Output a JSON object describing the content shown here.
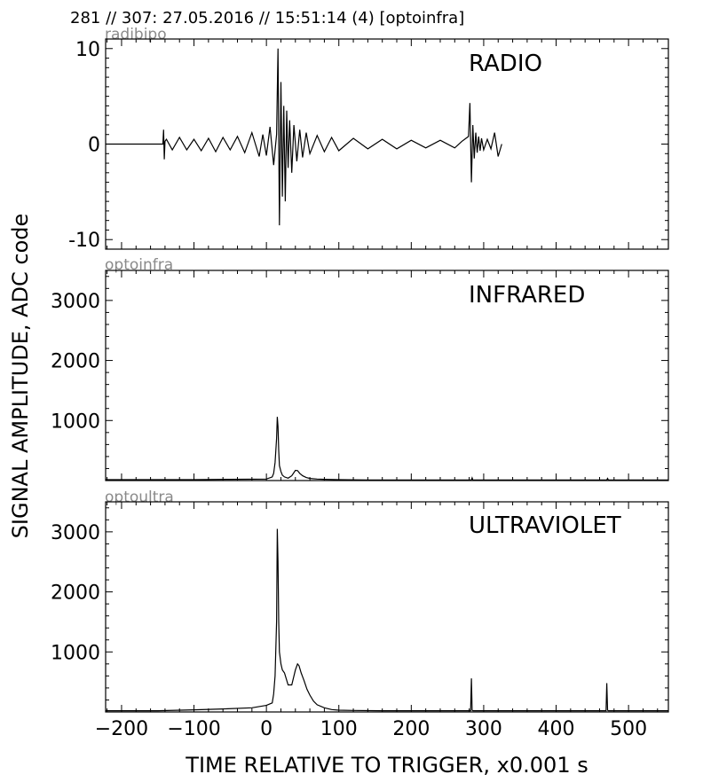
{
  "header": "281 // 307:   27.05.2016 // 15:51:14 (4)  [optoinfra]",
  "xlabel": "TIME RELATIVE TO TRIGGER,   x0.001 s",
  "ylabel": "SIGNAL AMPLITUDE,  ADC code",
  "chart_data": [
    {
      "type": "line",
      "title": "RADIO",
      "source": "radibipo",
      "xlim": [
        -222,
        555
      ],
      "ylim": [
        -11,
        11
      ],
      "yticks": [
        10,
        0,
        -10
      ],
      "series": [
        {
          "x": [
            -222,
            -143,
            -142,
            -141,
            -140,
            -138,
            -130,
            -120,
            -110,
            -100,
            -90,
            -80,
            -70,
            -60,
            -50,
            -40,
            -30,
            -20,
            -10,
            -5,
            0,
            5,
            10,
            14,
            16,
            18,
            20,
            22,
            24,
            26,
            28,
            30,
            32,
            35,
            38,
            42,
            46,
            50,
            55,
            60,
            70,
            80,
            90,
            100,
            120,
            140,
            160,
            180,
            200,
            220,
            240,
            260,
            270,
            279,
            281,
            283,
            285,
            287,
            289,
            291,
            293,
            295,
            297,
            300,
            305,
            310,
            315,
            320,
            325
          ],
          "y": [
            0,
            0,
            1.5,
            -1.6,
            0.3,
            0.5,
            -0.6,
            0.7,
            -0.6,
            0.5,
            -0.7,
            0.6,
            -0.8,
            0.7,
            -0.6,
            0.8,
            -0.9,
            1.2,
            -1.3,
            1.0,
            -1.2,
            1.8,
            -2.2,
            1.0,
            10.0,
            -8.5,
            6.5,
            -5.5,
            4.0,
            -6.0,
            3.5,
            -2.5,
            2.5,
            -3.0,
            2.0,
            -1.8,
            1.5,
            -1.4,
            1.2,
            -1.0,
            0.9,
            -0.8,
            0.7,
            -0.7,
            0.6,
            -0.5,
            0.5,
            -0.5,
            0.4,
            -0.4,
            0.4,
            -0.4,
            0.3,
            0.8,
            4.3,
            -4.0,
            2.0,
            -1.5,
            1.2,
            -0.9,
            0.8,
            -0.7,
            0.6,
            -0.6,
            0.5,
            -0.5,
            1.2,
            -1.3,
            0
          ]
        }
      ]
    },
    {
      "type": "line",
      "title": "INFRARED",
      "source": "optoinfra",
      "xlim": [
        -222,
        555
      ],
      "ylim": [
        0,
        3500
      ],
      "yticks": [
        3000,
        2000,
        1000
      ],
      "series": [
        {
          "x": [
            -222,
            -100,
            -50,
            0,
            8,
            10,
            12,
            14,
            15,
            16,
            17,
            18,
            20,
            22,
            25,
            30,
            35,
            40,
            43,
            46,
            50,
            55,
            60,
            70,
            80,
            100,
            140,
            200,
            283,
            284,
            285,
            300,
            400,
            470,
            471,
            472,
            555
          ],
          "y": [
            15,
            15,
            20,
            25,
            60,
            120,
            300,
            700,
            1060,
            900,
            500,
            250,
            150,
            90,
            60,
            40,
            80,
            170,
            165,
            120,
            80,
            50,
            35,
            25,
            20,
            15,
            10,
            10,
            10,
            45,
            10,
            10,
            10,
            10,
            35,
            10,
            10
          ]
        }
      ]
    },
    {
      "type": "line",
      "title": "ULTRAVIOLET",
      "source": "optoultra",
      "xlim": [
        -222,
        555
      ],
      "ylim": [
        0,
        3500
      ],
      "yticks": [
        3000,
        2000,
        1000
      ],
      "series": [
        {
          "x": [
            -222,
            -150,
            -100,
            -60,
            -20,
            0,
            8,
            10,
            12,
            14,
            15,
            16,
            17,
            18,
            20,
            22,
            25,
            30,
            35,
            40,
            43,
            45,
            48,
            52,
            56,
            60,
            65,
            70,
            80,
            90,
            100,
            120,
            160,
            200,
            282,
            283,
            284,
            285,
            300,
            400,
            469,
            470,
            471,
            472,
            490,
            555
          ],
          "y": [
            20,
            20,
            35,
            50,
            70,
            110,
            150,
            300,
            600,
            1500,
            3050,
            2500,
            1500,
            1000,
            800,
            700,
            650,
            450,
            450,
            700,
            800,
            770,
            650,
            520,
            380,
            280,
            180,
            120,
            70,
            40,
            30,
            25,
            20,
            20,
            20,
            560,
            30,
            20,
            20,
            20,
            20,
            480,
            30,
            20,
            20,
            20
          ]
        }
      ]
    }
  ]
}
